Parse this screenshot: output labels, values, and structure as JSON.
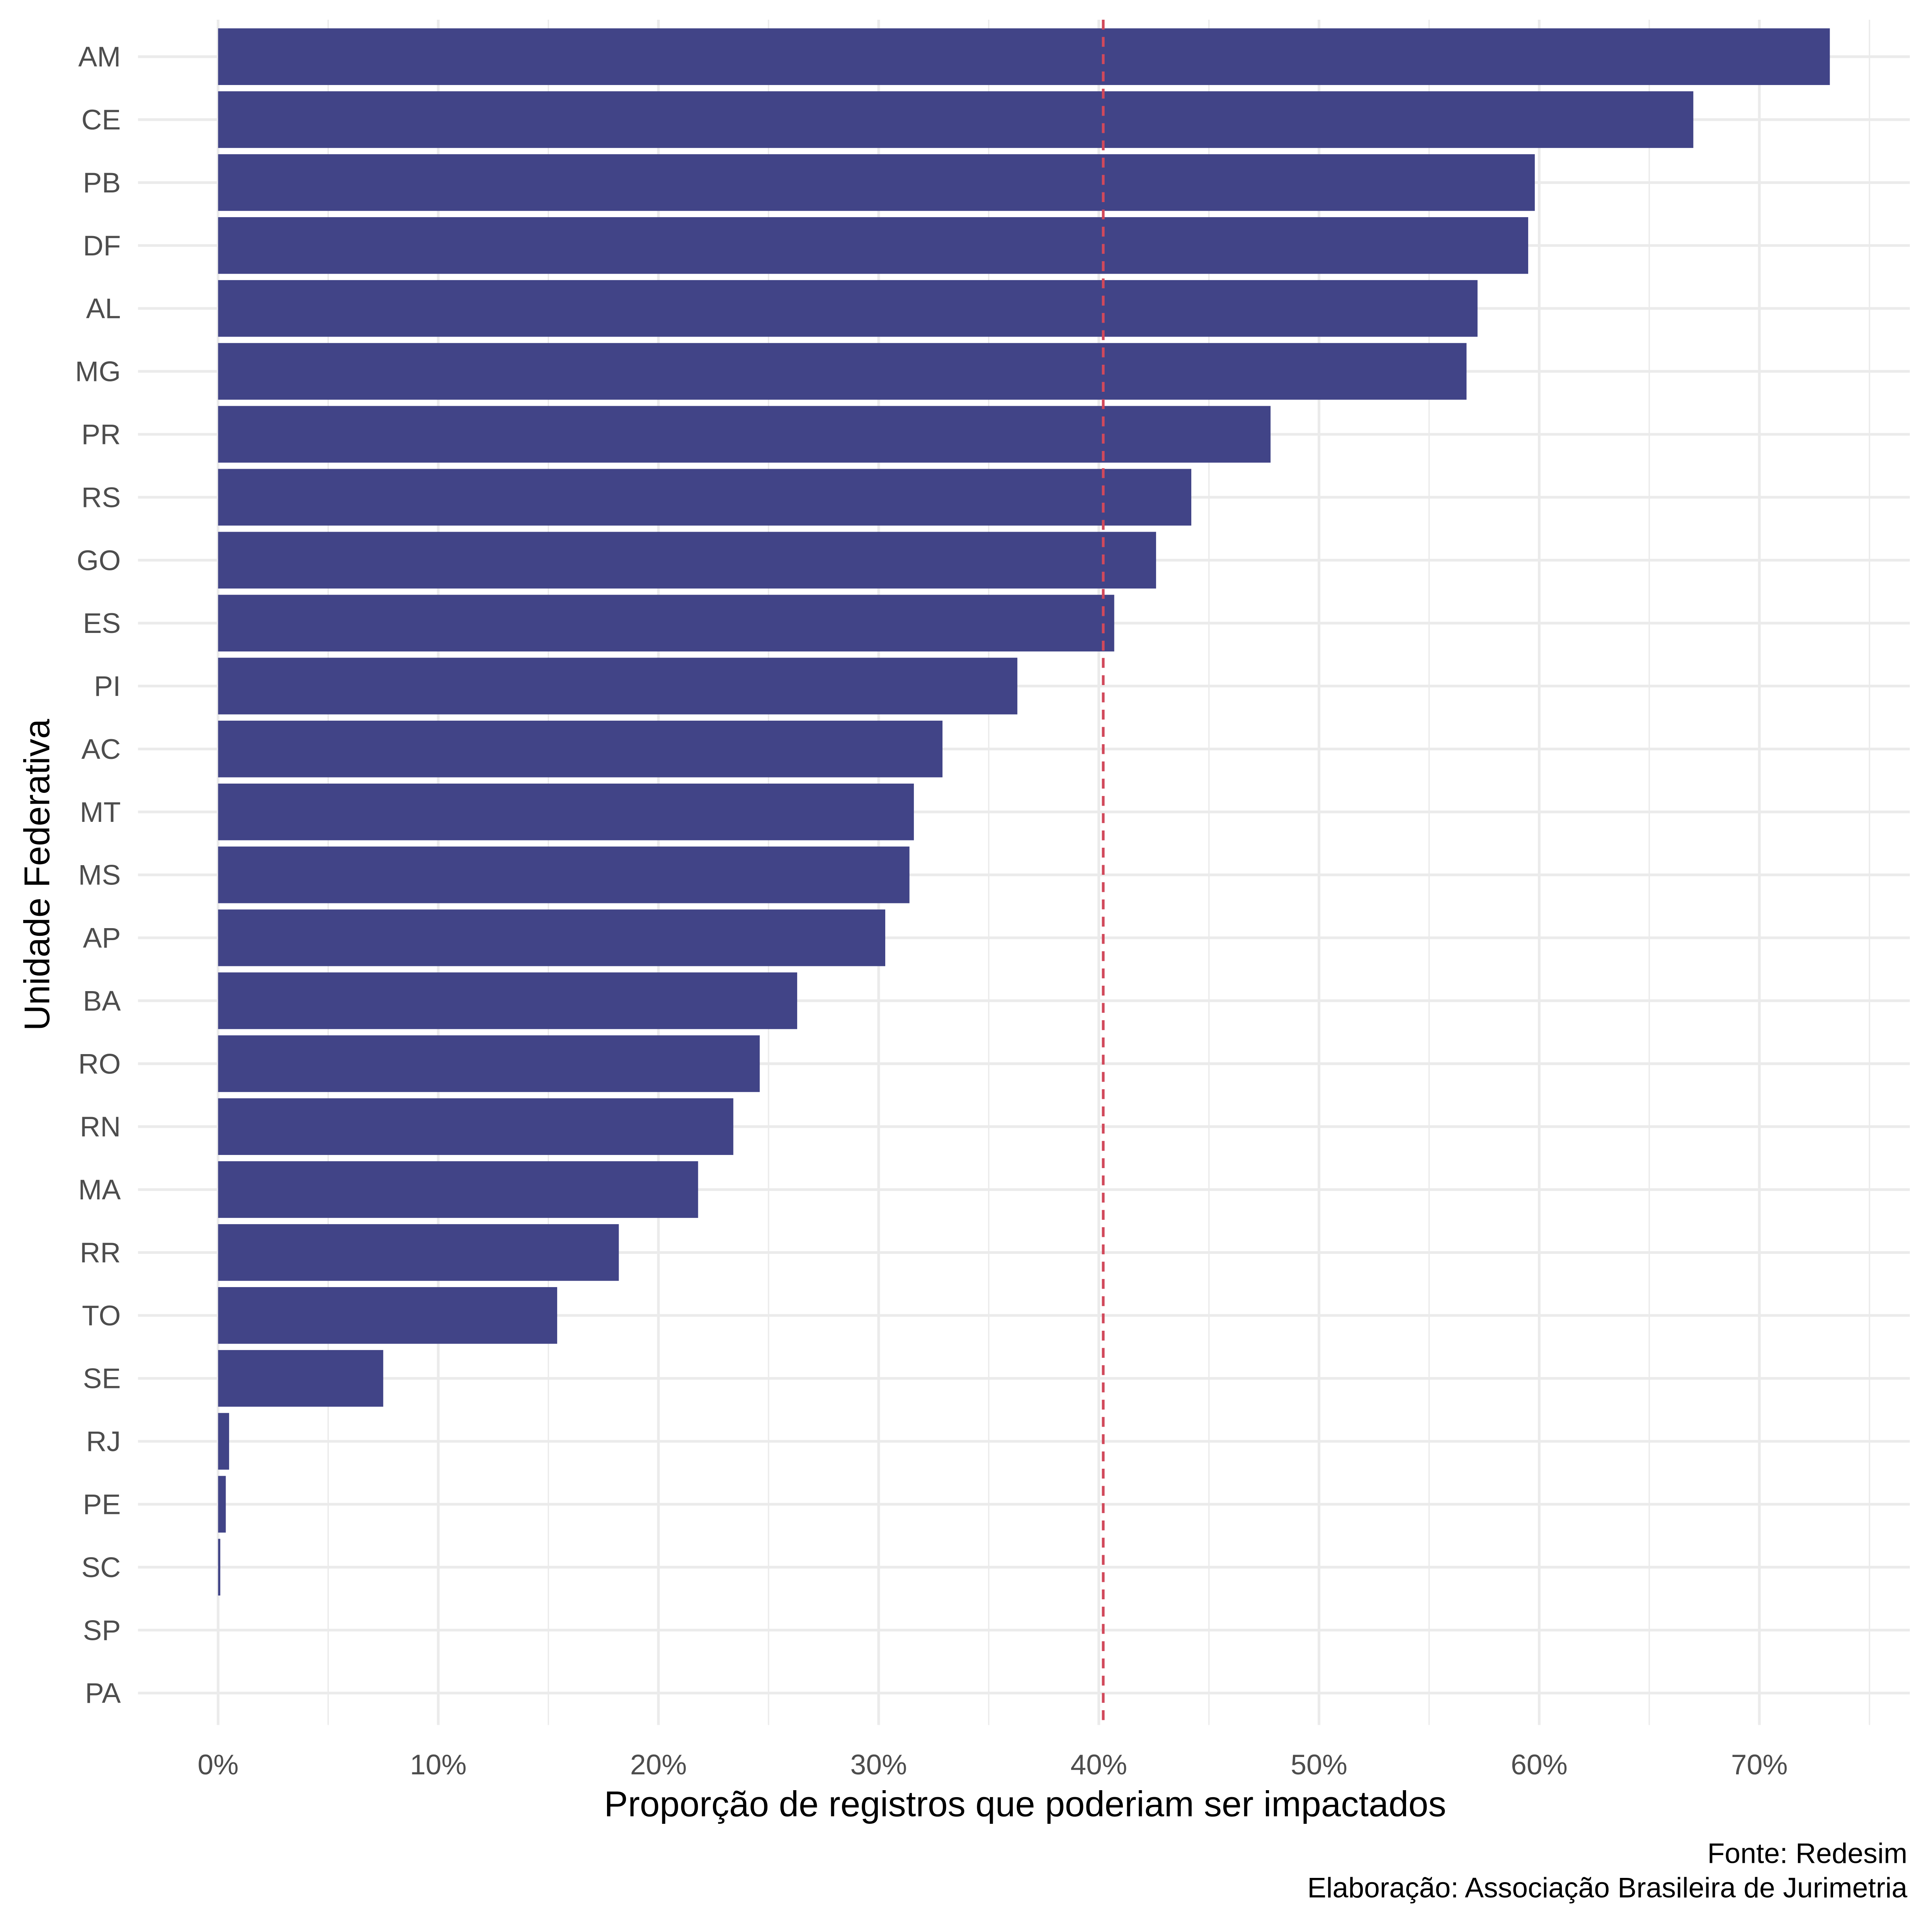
{
  "colors": {
    "bar": "#414487",
    "reference_line": "#D1495B",
    "grid": "#EBEBEB"
  },
  "chart_data": {
    "type": "bar",
    "orientation": "horizontal",
    "title": "",
    "xlabel": "Proporção de registros que poderiam ser impactados",
    "ylabel": "Unidade Federativa",
    "xlim": [
      0,
      0.75
    ],
    "x_ticks": [
      0,
      0.1,
      0.2,
      0.3,
      0.4,
      0.5,
      0.6,
      0.7
    ],
    "x_tick_labels": [
      "0%",
      "10%",
      "20%",
      "30%",
      "40%",
      "50%",
      "60%",
      "70%"
    ],
    "grid": true,
    "reference_line": {
      "x": 0.402,
      "style": "dashed"
    },
    "categories": [
      "AM",
      "CE",
      "PB",
      "DF",
      "AL",
      "MG",
      "PR",
      "RS",
      "GO",
      "ES",
      "PI",
      "AC",
      "MT",
      "MS",
      "AP",
      "BA",
      "RO",
      "RN",
      "MA",
      "RR",
      "TO",
      "SE",
      "RJ",
      "PE",
      "SC",
      "SP",
      "PA"
    ],
    "values": [
      0.732,
      0.67,
      0.598,
      0.595,
      0.572,
      0.567,
      0.478,
      0.442,
      0.426,
      0.407,
      0.363,
      0.329,
      0.316,
      0.314,
      0.303,
      0.263,
      0.246,
      0.234,
      0.218,
      0.182,
      0.154,
      0.075,
      0.005,
      0.0035,
      0.001,
      0,
      0
    ],
    "caption": [
      "Fonte: Redesim",
      "Elaboração: Associação Brasileira de Jurimetria"
    ]
  }
}
